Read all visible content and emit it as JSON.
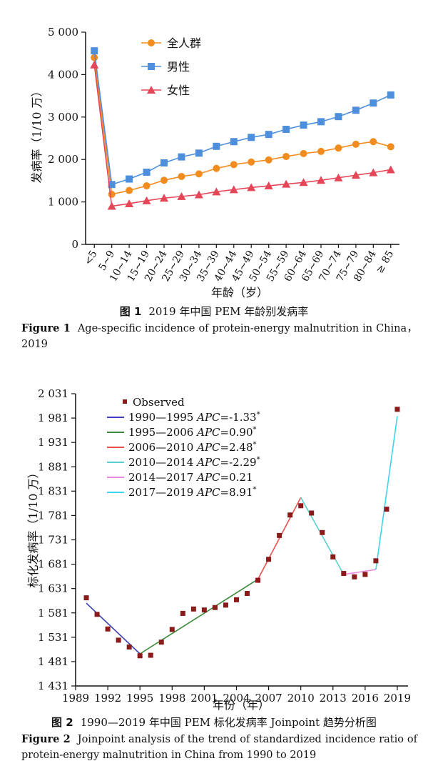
{
  "figure1": {
    "caption_cn_label": "图 1",
    "caption_cn_text": "2019 年中国 PEM 年龄别发病率",
    "caption_en_label": "Figure 1",
    "caption_en_text": "Age-specific incidence of protein-energy malnutrition in China，2019"
  },
  "figure2": {
    "caption_cn_label": "图 2",
    "caption_cn_text": "1990—2019 年中国 PEM 标化发病率 Joinpoint 趋势分析图",
    "caption_en_label": "Figure 2",
    "caption_en_text": "Joinpoint analysis of the trend of standardized incidence ratio of protein-energy malnutrition in China from 1990 to 2019"
  },
  "chart_data": [
    {
      "type": "line",
      "xlabel": "年龄（岁）",
      "ylabel": "发病率（1/10 万）",
      "ylim": [
        0,
        5000
      ],
      "yticks": [
        0,
        1000,
        2000,
        3000,
        4000,
        5000
      ],
      "ytick_labels": [
        "0",
        "1 000",
        "2 000",
        "3 000",
        "4 000",
        "5 000"
      ],
      "categories": [
        "<5",
        "5~9",
        "10~14",
        "15~19",
        "20~24",
        "25~29",
        "30~34",
        "35~39",
        "40~44",
        "45~49",
        "50~54",
        "55~59",
        "60~64",
        "65~69",
        "70~74",
        "75~79",
        "80~84",
        "≥ 85"
      ],
      "legend_position": "top",
      "series": [
        {
          "name": "全人群",
          "color": "#f28c1e",
          "marker": "circle",
          "values": [
            4400,
            1180,
            1270,
            1380,
            1510,
            1600,
            1660,
            1790,
            1880,
            1940,
            1990,
            2070,
            2140,
            2190,
            2270,
            2360,
            2420,
            2300
          ]
        },
        {
          "name": "男性",
          "color": "#4d8fdc",
          "marker": "square",
          "values": [
            4560,
            1410,
            1540,
            1700,
            1920,
            2060,
            2150,
            2310,
            2420,
            2520,
            2590,
            2710,
            2810,
            2890,
            3010,
            3160,
            3330,
            3520
          ]
        },
        {
          "name": "女性",
          "color": "#e54658",
          "marker": "triangle",
          "values": [
            4230,
            900,
            960,
            1030,
            1090,
            1130,
            1170,
            1240,
            1290,
            1340,
            1380,
            1420,
            1460,
            1510,
            1570,
            1630,
            1690,
            1760
          ]
        }
      ]
    },
    {
      "type": "scatter",
      "xlabel": "年份（年）",
      "ylabel": "标化发病率（1/10 万）",
      "xlim": [
        1989,
        2020
      ],
      "ylim": [
        1431,
        2031
      ],
      "xticks": [
        1989,
        1992,
        1995,
        1998,
        2001,
        2004,
        2007,
        2010,
        2013,
        2016,
        2019
      ],
      "yticks": [
        1431,
        1481,
        1531,
        1581,
        1631,
        1681,
        1731,
        1781,
        1831,
        1881,
        1931,
        1981,
        2031
      ],
      "ytick_labels": [
        "1 431",
        "1 481",
        "1 531",
        "1 581",
        "1 631",
        "1 681",
        "1 731",
        "1 781",
        "1 831",
        "1 881",
        "1 931",
        "1 981",
        "2 031"
      ],
      "legend_position": "top-left",
      "observed": {
        "name": "Observed",
        "color": "#8b1a1a",
        "x": [
          1990,
          1991,
          1992,
          1993,
          1994,
          1995,
          1996,
          1997,
          1998,
          1999,
          2000,
          2001,
          2002,
          2003,
          2004,
          2005,
          2006,
          2007,
          2008,
          2009,
          2010,
          2011,
          2012,
          2013,
          2014,
          2015,
          2016,
          2017,
          2018,
          2019
        ],
        "y": [
          1612,
          1578,
          1548,
          1525,
          1511,
          1493,
          1494,
          1521,
          1547,
          1580,
          1589,
          1587,
          1592,
          1597,
          1608,
          1621,
          1648,
          1691,
          1740,
          1782,
          1801,
          1786,
          1746,
          1696,
          1662,
          1655,
          1660,
          1688,
          1794,
          1999
        ]
      },
      "segments": [
        {
          "name": "1990—1995",
          "apc_label": "APC",
          "apc_value": "=-1.33",
          "sig": "*",
          "color": "#3f3fb5",
          "x": [
            1990,
            1995
          ],
          "y": [
            1601,
            1497
          ]
        },
        {
          "name": "1995—2006",
          "apc_label": "APC",
          "apc_value": "=0.90",
          "sig": "*",
          "color": "#3a8a3a",
          "x": [
            1995,
            2006
          ],
          "y": [
            1497,
            1650
          ]
        },
        {
          "name": "2006—2010",
          "apc_label": "APC",
          "apc_value": "=2.48",
          "sig": "*",
          "color": "#e6504f",
          "x": [
            2006,
            2010
          ],
          "y": [
            1650,
            1818
          ]
        },
        {
          "name": "2010—2014",
          "apc_label": "APC",
          "apc_value": "=-2.29",
          "sig": "*",
          "color": "#5ad0cc",
          "x": [
            2010,
            2014
          ],
          "y": [
            1818,
            1660
          ]
        },
        {
          "name": "2014—2017",
          "apc_label": "APC",
          "apc_value": "=0.21",
          "sig": "",
          "color": "#e889e0",
          "x": [
            2014,
            2017
          ],
          "y": [
            1660,
            1670
          ]
        },
        {
          "name": "2017—2019",
          "apc_label": "APC",
          "apc_value": "=8.91",
          "sig": "*",
          "color": "#3ed4ee",
          "x": [
            2017,
            2019
          ],
          "y": [
            1670,
            1985
          ]
        }
      ]
    }
  ]
}
